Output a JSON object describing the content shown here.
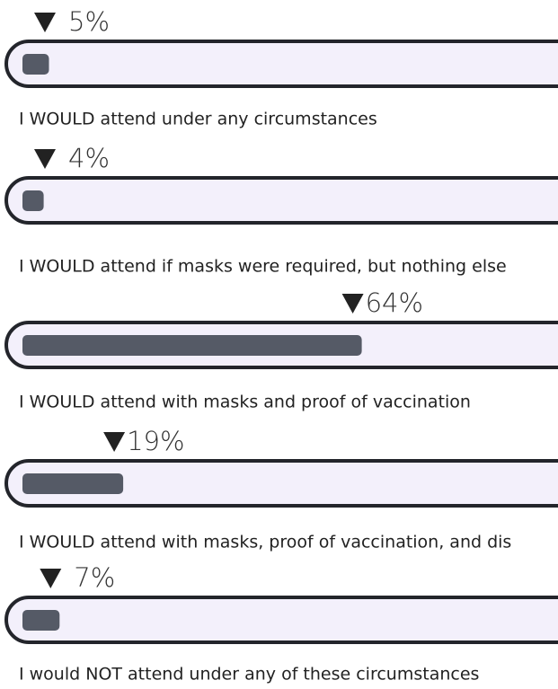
{
  "chart_data": {
    "type": "bar",
    "categories": [
      "I WOULD attend under any circumstances",
      "I WOULD attend if masks were required, but nothing else",
      "I WOULD attend with masks and proof of vaccination",
      "I WOULD attend with masks, proof of vaccination, and dis",
      "I would NOT attend under any of these circumstances"
    ],
    "values": [
      5,
      4,
      64,
      19,
      7
    ],
    "value_labels": [
      "5%",
      "4%",
      "64%",
      "19%",
      "7%"
    ],
    "color": "#555a66"
  }
}
